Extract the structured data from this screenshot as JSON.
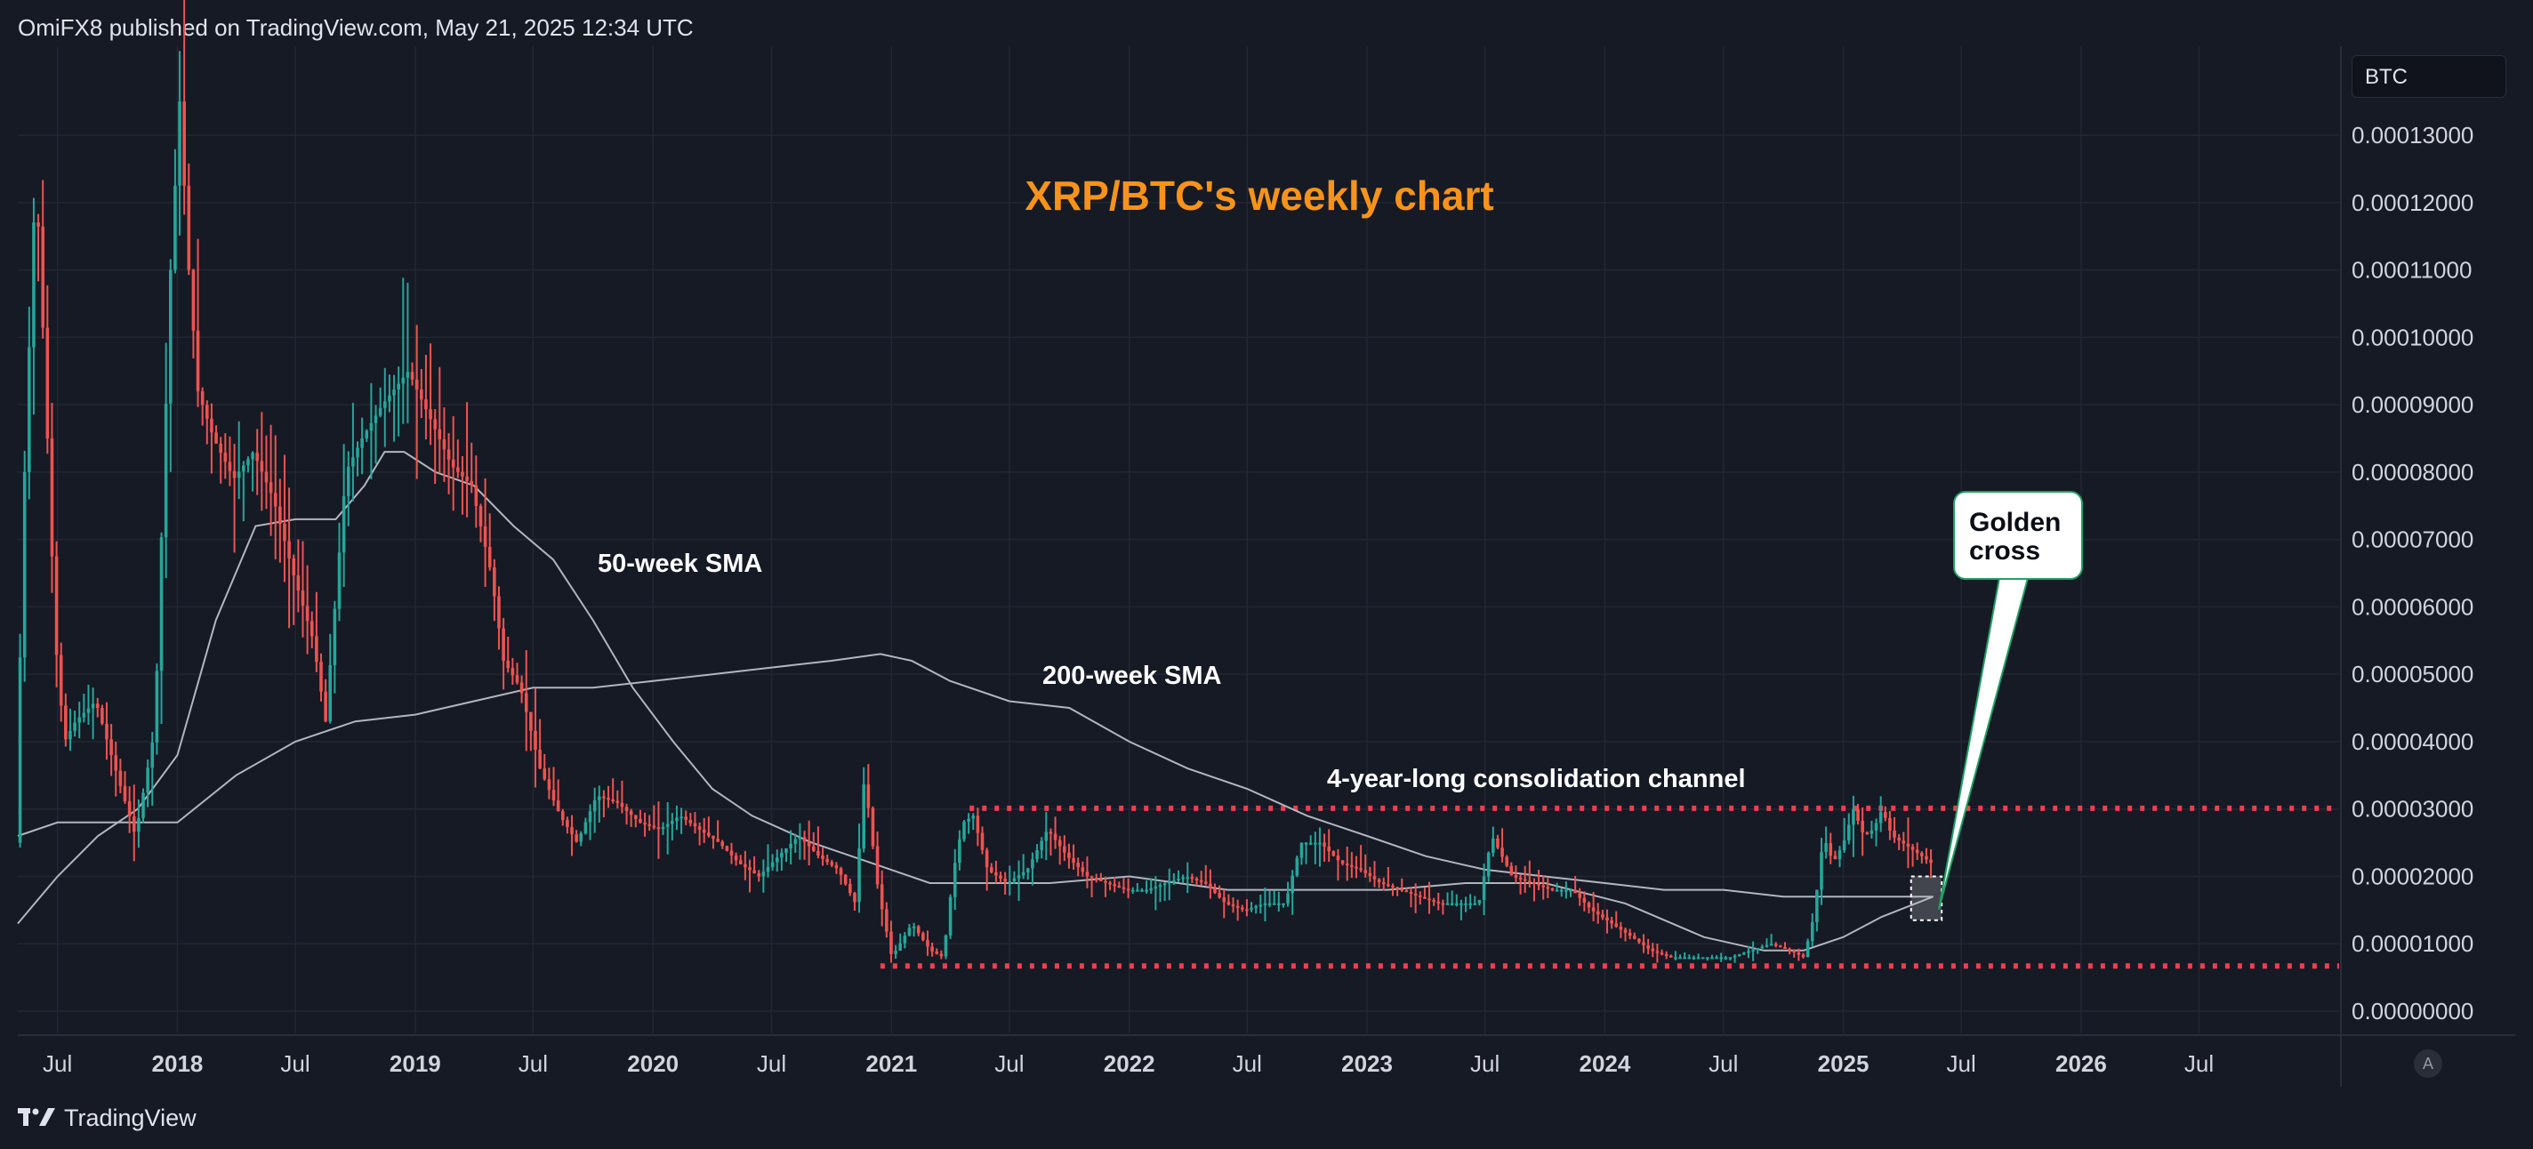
{
  "header": {
    "publisher_line": "OmiFX8 published on TradingView.com, May 21, 2025 12:34 UTC"
  },
  "footer": {
    "brand": "TradingView",
    "auto_scale": "A"
  },
  "price_scale": {
    "currency": "BTC"
  },
  "colors": {
    "background": "#161a25",
    "grid": "#232733",
    "up_candle": "#26a69a",
    "down_candle": "#ef5350",
    "sma": "#b2b5be",
    "channel": "#ef3f4f",
    "title": "#f7931a",
    "callout_border": "#21a065"
  },
  "chart_data": {
    "type": "candlestick",
    "symbol": "XRP/BTC",
    "timeframe": "weekly",
    "title": "XRP/BTC's weekly chart",
    "y_axis": {
      "side": "right",
      "unit": "BTC",
      "range": [
        0.0,
        0.000142
      ],
      "ticks": [
        "0.00013000",
        "0.00012000",
        "0.00011000",
        "0.00010000",
        "0.00009000",
        "0.00008000",
        "0.00007000",
        "0.00006000",
        "0.00005000",
        "0.00004000",
        "0.00003000",
        "0.00002000",
        "0.00001000",
        "0.00000000"
      ]
    },
    "x_axis": {
      "range": [
        "2017-05-01",
        "2027-02-01"
      ],
      "ticks": [
        {
          "label": "Jul",
          "date": "2017-07-01",
          "bold": false
        },
        {
          "label": "2018",
          "date": "2018-01-01",
          "bold": true
        },
        {
          "label": "Jul",
          "date": "2018-07-01",
          "bold": false
        },
        {
          "label": "2019",
          "date": "2019-01-01",
          "bold": true
        },
        {
          "label": "Jul",
          "date": "2019-07-01",
          "bold": false
        },
        {
          "label": "2020",
          "date": "2020-01-01",
          "bold": true
        },
        {
          "label": "Jul",
          "date": "2020-07-01",
          "bold": false
        },
        {
          "label": "2021",
          "date": "2021-01-01",
          "bold": true
        },
        {
          "label": "Jul",
          "date": "2021-07-01",
          "bold": false
        },
        {
          "label": "2022",
          "date": "2022-01-01",
          "bold": true
        },
        {
          "label": "Jul",
          "date": "2022-07-01",
          "bold": false
        },
        {
          "label": "2023",
          "date": "2023-01-01",
          "bold": true
        },
        {
          "label": "Jul",
          "date": "2023-07-01",
          "bold": false
        },
        {
          "label": "2024",
          "date": "2024-01-01",
          "bold": true
        },
        {
          "label": "Jul",
          "date": "2024-07-01",
          "bold": false
        },
        {
          "label": "2025",
          "date": "2025-01-01",
          "bold": true
        },
        {
          "label": "Jul",
          "date": "2025-07-01",
          "bold": false
        },
        {
          "label": "2026",
          "date": "2026-01-01",
          "bold": true
        },
        {
          "label": "Jul",
          "date": "2026-07-01",
          "bold": false
        }
      ]
    },
    "grid": true,
    "price_path": [
      [
        "2017-05-01",
        2.5e-05
      ],
      [
        "2017-05-15",
        8e-05
      ],
      [
        "2017-06-01",
        0.000125
      ],
      [
        "2017-06-15",
        9.5e-05
      ],
      [
        "2017-07-01",
        5.5e-05
      ],
      [
        "2017-07-15",
        4e-05
      ],
      [
        "2017-08-01",
        4.3e-05
      ],
      [
        "2017-09-01",
        4.6e-05
      ],
      [
        "2017-10-01",
        3.6e-05
      ],
      [
        "2017-11-01",
        2.6e-05
      ],
      [
        "2017-12-01",
        4.2e-05
      ],
      [
        "2017-12-25",
        0.00011
      ],
      [
        "2018-01-08",
        0.000135
      ],
      [
        "2018-01-22",
        0.00011
      ],
      [
        "2018-02-05",
        9.2e-05
      ],
      [
        "2018-03-01",
        8.5e-05
      ],
      [
        "2018-04-01",
        7.9e-05
      ],
      [
        "2018-05-01",
        8.3e-05
      ],
      [
        "2018-06-01",
        7.6e-05
      ],
      [
        "2018-07-01",
        6.5e-05
      ],
      [
        "2018-08-01",
        5.5e-05
      ],
      [
        "2018-08-20",
        4.3e-05
      ],
      [
        "2018-09-20",
        8e-05
      ],
      [
        "2018-10-15",
        8.5e-05
      ],
      [
        "2018-11-15",
        9e-05
      ],
      [
        "2018-12-25",
        9.5e-05
      ],
      [
        "2019-02-01",
        8.7e-05
      ],
      [
        "2019-03-01",
        8.1e-05
      ],
      [
        "2019-04-01",
        7.8e-05
      ],
      [
        "2019-05-01",
        6.5e-05
      ],
      [
        "2019-05-20",
        5.2e-05
      ],
      [
        "2019-06-15",
        4.8e-05
      ],
      [
        "2019-07-15",
        3.6e-05
      ],
      [
        "2019-08-15",
        2.9e-05
      ],
      [
        "2019-09-10",
        2.5e-05
      ],
      [
        "2019-10-10",
        3.2e-05
      ],
      [
        "2019-11-10",
        3.1e-05
      ],
      [
        "2019-12-15",
        2.8e-05
      ],
      [
        "2020-01-15",
        2.7e-05
      ],
      [
        "2020-02-15",
        2.9e-05
      ],
      [
        "2020-03-15",
        2.7e-05
      ],
      [
        "2020-04-15",
        2.5e-05
      ],
      [
        "2020-05-15",
        2.2e-05
      ],
      [
        "2020-06-15",
        2e-05
      ],
      [
        "2020-07-15",
        2.3e-05
      ],
      [
        "2020-08-15",
        2.6e-05
      ],
      [
        "2020-09-15",
        2.3e-05
      ],
      [
        "2020-10-15",
        2.1e-05
      ],
      [
        "2020-11-10",
        1.6e-05
      ],
      [
        "2020-11-24",
        3.5e-05
      ],
      [
        "2020-12-15",
        1.8e-05
      ],
      [
        "2021-01-05",
        8e-06
      ],
      [
        "2021-02-05",
        1.3e-05
      ],
      [
        "2021-03-05",
        9e-06
      ],
      [
        "2021-03-25",
        8e-06
      ],
      [
        "2021-04-10",
        2.1e-05
      ],
      [
        "2021-04-24",
        2.8e-05
      ],
      [
        "2021-05-10",
        2.9e-05
      ],
      [
        "2021-06-01",
        2.1e-05
      ],
      [
        "2021-07-01",
        1.9e-05
      ],
      [
        "2021-08-01",
        2.1e-05
      ],
      [
        "2021-09-01",
        2.7e-05
      ],
      [
        "2021-10-01",
        2.3e-05
      ],
      [
        "2021-11-01",
        2e-05
      ],
      [
        "2021-12-01",
        1.9e-05
      ],
      [
        "2022-01-01",
        1.8e-05
      ],
      [
        "2022-02-01",
        1.8e-05
      ],
      [
        "2022-03-01",
        1.9e-05
      ],
      [
        "2022-04-01",
        2e-05
      ],
      [
        "2022-05-01",
        1.9e-05
      ],
      [
        "2022-06-01",
        1.6e-05
      ],
      [
        "2022-07-01",
        1.5e-05
      ],
      [
        "2022-08-01",
        1.6e-05
      ],
      [
        "2022-09-01",
        1.6e-05
      ],
      [
        "2022-09-25",
        2.5e-05
      ],
      [
        "2022-10-25",
        2.5e-05
      ],
      [
        "2022-11-25",
        2.2e-05
      ],
      [
        "2022-12-25",
        2.1e-05
      ],
      [
        "2023-01-25",
        1.9e-05
      ],
      [
        "2023-02-25",
        1.8e-05
      ],
      [
        "2023-03-25",
        1.7e-05
      ],
      [
        "2023-04-25",
        1.6e-05
      ],
      [
        "2023-05-25",
        1.6e-05
      ],
      [
        "2023-06-25",
        1.6e-05
      ],
      [
        "2023-07-15",
        2.6e-05
      ],
      [
        "2023-08-15",
        2e-05
      ],
      [
        "2023-09-15",
        1.9e-05
      ],
      [
        "2023-10-15",
        1.8e-05
      ],
      [
        "2023-11-15",
        1.8e-05
      ],
      [
        "2023-12-15",
        1.5e-05
      ],
      [
        "2024-01-15",
        1.3e-05
      ],
      [
        "2024-02-15",
        1.1e-05
      ],
      [
        "2024-03-15",
        9e-06
      ],
      [
        "2024-04-15",
        8e-06
      ],
      [
        "2024-05-15",
        8e-06
      ],
      [
        "2024-06-15",
        8e-06
      ],
      [
        "2024-07-15",
        8e-06
      ],
      [
        "2024-08-15",
        9e-06
      ],
      [
        "2024-09-15",
        1e-05
      ],
      [
        "2024-10-15",
        9e-06
      ],
      [
        "2024-11-05",
        8e-06
      ],
      [
        "2024-11-20",
        1.4e-05
      ],
      [
        "2024-12-05",
        2.6e-05
      ],
      [
        "2024-12-20",
        2.2e-05
      ],
      [
        "2025-01-05",
        2.5e-05
      ],
      [
        "2025-01-20",
        3e-05
      ],
      [
        "2025-02-05",
        2.6e-05
      ],
      [
        "2025-02-20",
        2.7e-05
      ],
      [
        "2025-03-05",
        3e-05
      ],
      [
        "2025-03-20",
        2.6e-05
      ],
      [
        "2025-04-05",
        2.5e-05
      ],
      [
        "2025-04-20",
        2.4e-05
      ],
      [
        "2025-05-05",
        2.3e-05
      ],
      [
        "2025-05-19",
        2.2e-05
      ]
    ],
    "sma_50w": [
      [
        "2017-05-01",
        1.3e-05
      ],
      [
        "2017-07-01",
        2e-05
      ],
      [
        "2017-09-01",
        2.6e-05
      ],
      [
        "2017-11-01",
        3e-05
      ],
      [
        "2018-01-01",
        3.8e-05
      ],
      [
        "2018-03-01",
        5.8e-05
      ],
      [
        "2018-05-01",
        7.2e-05
      ],
      [
        "2018-07-01",
        7.3e-05
      ],
      [
        "2018-09-01",
        7.3e-05
      ],
      [
        "2018-10-15",
        7.8e-05
      ],
      [
        "2018-11-15",
        8.3e-05
      ],
      [
        "2018-12-15",
        8.3e-05
      ],
      [
        "2019-02-01",
        8e-05
      ],
      [
        "2019-04-01",
        7.8e-05
      ],
      [
        "2019-06-01",
        7.2e-05
      ],
      [
        "2019-08-01",
        6.7e-05
      ],
      [
        "2019-10-01",
        5.8e-05
      ],
      [
        "2019-12-01",
        4.8e-05
      ],
      [
        "2020-02-01",
        4e-05
      ],
      [
        "2020-04-01",
        3.3e-05
      ],
      [
        "2020-06-01",
        2.9e-05
      ],
      [
        "2020-09-01",
        2.5e-05
      ],
      [
        "2020-12-01",
        2.2e-05
      ],
      [
        "2021-03-01",
        1.9e-05
      ],
      [
        "2021-06-01",
        1.9e-05
      ],
      [
        "2021-09-01",
        1.9e-05
      ],
      [
        "2022-01-01",
        2e-05
      ],
      [
        "2022-06-01",
        1.8e-05
      ],
      [
        "2022-10-01",
        1.8e-05
      ],
      [
        "2023-02-01",
        1.8e-05
      ],
      [
        "2023-06-01",
        1.9e-05
      ],
      [
        "2023-10-01",
        1.9e-05
      ],
      [
        "2024-02-01",
        1.6e-05
      ],
      [
        "2024-06-01",
        1.1e-05
      ],
      [
        "2024-09-01",
        9e-06
      ],
      [
        "2024-11-01",
        9e-06
      ],
      [
        "2025-01-01",
        1.1e-05
      ],
      [
        "2025-03-01",
        1.4e-05
      ],
      [
        "2025-05-19",
        1.7e-05
      ]
    ],
    "sma_200w": [
      [
        "2017-05-01",
        2.6e-05
      ],
      [
        "2017-07-01",
        2.8e-05
      ],
      [
        "2017-10-01",
        2.8e-05
      ],
      [
        "2018-01-01",
        2.8e-05
      ],
      [
        "2018-04-01",
        3.5e-05
      ],
      [
        "2018-07-01",
        4e-05
      ],
      [
        "2018-10-01",
        4.3e-05
      ],
      [
        "2019-01-01",
        4.4e-05
      ],
      [
        "2019-04-01",
        4.6e-05
      ],
      [
        "2019-07-01",
        4.8e-05
      ],
      [
        "2019-10-01",
        4.8e-05
      ],
      [
        "2020-01-01",
        4.9e-05
      ],
      [
        "2020-04-01",
        5e-05
      ],
      [
        "2020-07-01",
        5.1e-05
      ],
      [
        "2020-10-01",
        5.2e-05
      ],
      [
        "2020-12-15",
        5.3e-05
      ],
      [
        "2021-02-01",
        5.2e-05
      ],
      [
        "2021-04-01",
        4.9e-05
      ],
      [
        "2021-07-01",
        4.6e-05
      ],
      [
        "2021-10-01",
        4.5e-05
      ],
      [
        "2022-01-01",
        4e-05
      ],
      [
        "2022-04-01",
        3.6e-05
      ],
      [
        "2022-07-01",
        3.3e-05
      ],
      [
        "2022-10-01",
        2.9e-05
      ],
      [
        "2023-01-01",
        2.6e-05
      ],
      [
        "2023-04-01",
        2.3e-05
      ],
      [
        "2023-07-01",
        2.1e-05
      ],
      [
        "2023-10-01",
        2e-05
      ],
      [
        "2024-01-01",
        1.9e-05
      ],
      [
        "2024-04-01",
        1.8e-05
      ],
      [
        "2024-07-01",
        1.8e-05
      ],
      [
        "2024-10-01",
        1.7e-05
      ],
      [
        "2025-01-01",
        1.7e-05
      ],
      [
        "2025-05-19",
        1.7e-05
      ]
    ],
    "channel": {
      "upper": {
        "value": 3.01e-05,
        "start": "2021-05-01",
        "end": "2027-02-01"
      },
      "lower": {
        "value": 6.7e-06,
        "start": "2020-12-15",
        "end": "2027-02-01"
      }
    },
    "annotations": {
      "sma50_label": "50-week SMA",
      "sma200_label": "200-week SMA",
      "channel_label": "4-year-long consolidation channel",
      "callout": "Golden\ncross",
      "crossover_box": {
        "start": "2025-04-15",
        "end": "2025-06-01",
        "low": 1.35e-05,
        "high": 2e-05
      }
    }
  }
}
